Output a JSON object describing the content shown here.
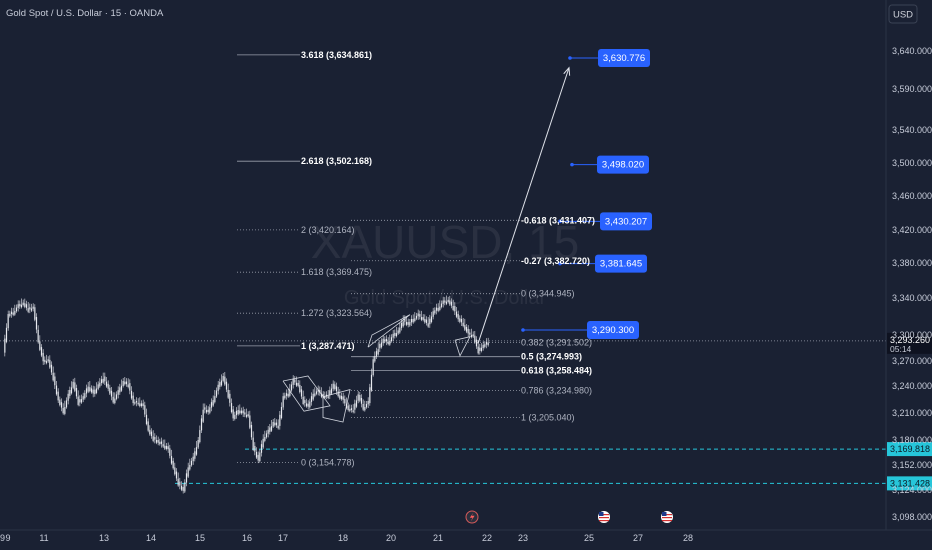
{
  "header": {
    "title": "Gold Spot / U.S. Dollar · 15 · OANDA",
    "currency": "USD"
  },
  "watermark": {
    "symbol": "XAUUSD, 15",
    "name": "Gold Spot / U.S. Dollar"
  },
  "colors": {
    "background": "#1a2133",
    "candle": "#e8eaf0",
    "fib_line": "#9aa0ac",
    "target_box": "#2962ff",
    "teal": "#26c6da",
    "price_line": "#9aa0ac",
    "current_price_box": "#0e1220"
  },
  "chart_data": {
    "type": "candlestick",
    "symbol": "XAUUSD",
    "interval": "15",
    "y_axis": {
      "ticks": [
        "3,098.000",
        "3,124.000",
        "3,152.000",
        "3,180.000",
        "3,210.000",
        "3,240.000",
        "3,270.000",
        "3,300.000",
        "3,340.000",
        "3,380.000",
        "3,420.000",
        "3,460.000",
        "3,500.000",
        "3,540.000",
        "3,590.000",
        "3,640.000"
      ]
    },
    "x_axis": {
      "ticks": [
        "9",
        "11",
        "13",
        "14",
        "15",
        "16",
        "17",
        "18",
        "20",
        "21",
        "22",
        "23",
        "25",
        "27",
        "28",
        "29"
      ]
    },
    "price_path": [
      [
        0,
        3280
      ],
      [
        1,
        3322
      ],
      [
        2,
        3325
      ],
      [
        3,
        3332
      ],
      [
        4,
        3335
      ],
      [
        5,
        3328
      ],
      [
        6,
        3330
      ],
      [
        7,
        3294
      ],
      [
        8,
        3270
      ],
      [
        9,
        3272
      ],
      [
        10,
        3250
      ],
      [
        11,
        3225
      ],
      [
        12,
        3212
      ],
      [
        13,
        3230
      ],
      [
        14,
        3245
      ],
      [
        15,
        3222
      ],
      [
        16,
        3228
      ],
      [
        17,
        3240
      ],
      [
        18,
        3232
      ],
      [
        19,
        3242
      ],
      [
        20,
        3250
      ],
      [
        21,
        3238
      ],
      [
        22,
        3224
      ],
      [
        23,
        3234
      ],
      [
        24,
        3246
      ],
      [
        25,
        3242
      ],
      [
        26,
        3222
      ],
      [
        27,
        3222
      ],
      [
        28,
        3218
      ],
      [
        29,
        3192
      ],
      [
        30,
        3182
      ],
      [
        31,
        3178
      ],
      [
        32,
        3175
      ],
      [
        33,
        3170
      ],
      [
        34,
        3150
      ],
      [
        35,
        3132
      ],
      [
        36,
        3124
      ],
      [
        37,
        3150
      ],
      [
        38,
        3160
      ],
      [
        39,
        3180
      ],
      [
        40,
        3215
      ],
      [
        41,
        3212
      ],
      [
        42,
        3225
      ],
      [
        43,
        3240
      ],
      [
        44,
        3252
      ],
      [
        45,
        3230
      ],
      [
        46,
        3205
      ],
      [
        47,
        3214
      ],
      [
        48,
        3210
      ],
      [
        49,
        3208
      ],
      [
        50,
        3172
      ],
      [
        51,
        3158
      ],
      [
        52,
        3182
      ],
      [
        53,
        3190
      ],
      [
        54,
        3200
      ],
      [
        55,
        3196
      ],
      [
        56,
        3228
      ],
      [
        57,
        3232
      ],
      [
        58,
        3247
      ],
      [
        59,
        3242
      ],
      [
        60,
        3223
      ],
      [
        61,
        3218
      ],
      [
        62,
        3232
      ],
      [
        63,
        3235
      ],
      [
        64,
        3229
      ],
      [
        65,
        3230
      ],
      [
        66,
        3242
      ],
      [
        67,
        3231
      ],
      [
        68,
        3225
      ],
      [
        69,
        3215
      ],
      [
        70,
        3214
      ],
      [
        71,
        3230
      ],
      [
        72,
        3216
      ],
      [
        73,
        3222
      ],
      [
        74,
        3272
      ],
      [
        75,
        3285
      ],
      [
        76,
        3295
      ],
      [
        77,
        3292
      ],
      [
        78,
        3300
      ],
      [
        79,
        3305
      ],
      [
        80,
        3316
      ],
      [
        81,
        3312
      ],
      [
        82,
        3318
      ],
      [
        83,
        3322
      ],
      [
        84,
        3318
      ],
      [
        85,
        3312
      ],
      [
        86,
        3325
      ],
      [
        87,
        3330
      ],
      [
        88,
        3336
      ],
      [
        89,
        3338
      ],
      [
        90,
        3330
      ],
      [
        91,
        3318
      ],
      [
        92,
        3312
      ],
      [
        93,
        3302
      ],
      [
        94,
        3300
      ],
      [
        95,
        3282
      ],
      [
        96,
        3288
      ],
      [
        97,
        3292
      ]
    ],
    "fib_retracement": [
      {
        "label": "0 (3,344.945)",
        "price": 3344.945
      },
      {
        "label": "0.382 (3,291.502)",
        "price": 3291.502
      },
      {
        "label": "0.5 (3,274.993)",
        "price": 3274.993,
        "bold": true
      },
      {
        "label": "0.618 (3,258.484)",
        "price": 3258.484,
        "bold": true
      },
      {
        "label": "0.786 (3,234.980)",
        "price": 3234.98
      },
      {
        "label": "1 (3,205.040)",
        "price": 3205.04
      }
    ],
    "fib_extension": [
      {
        "label": "3.618 (3,634.861)",
        "price": 3634.861,
        "bold": true
      },
      {
        "label": "2.618 (3,502.168)",
        "price": 3502.168,
        "bold": true
      },
      {
        "label": "2 (3,420.164)",
        "price": 3420.164
      },
      {
        "label": "1.618 (3,369.475)",
        "price": 3369.475
      },
      {
        "label": "1.272 (3,323.564)",
        "price": 3323.564
      },
      {
        "label": "1 (3,287.471)",
        "price": 3287.471,
        "bold": true
      },
      {
        "label": "0 (3,154.778)",
        "price": 3154.778
      }
    ],
    "fib_negative": [
      {
        "label": "-0.618 (3,431.407)",
        "price": 3431.407,
        "bold": true
      },
      {
        "label": "-0.27 (3,382.720)",
        "price": 3382.72,
        "bold": true
      }
    ],
    "target_labels": [
      {
        "label": "3,630.776",
        "price": 3630.776
      },
      {
        "label": "3,498.020",
        "price": 3498.02
      },
      {
        "label": "3,430.207",
        "price": 3430.207
      },
      {
        "label": "3,381.645",
        "price": 3381.645
      },
      {
        "label": "3,290.300",
        "price": 3290.3
      }
    ],
    "horizontal_lines": [
      {
        "label": "3,169.818",
        "price": 3169.818
      },
      {
        "label": "3,131.428",
        "price": 3131.428
      }
    ],
    "current_price": {
      "label": "3,293.260",
      "countdown": "05:14",
      "price": 3293.26
    }
  }
}
